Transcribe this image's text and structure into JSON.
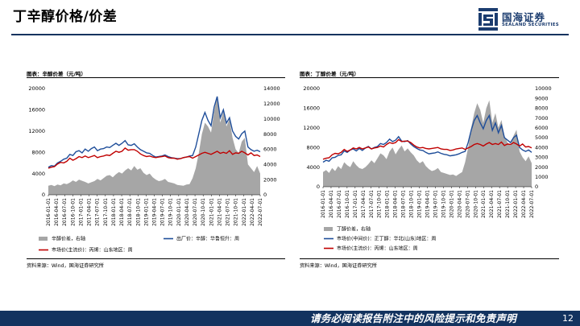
{
  "page": {
    "title": "丁辛醇价格/价差",
    "page_number": "12",
    "footer_disclaimer": "请务必阅读报告附注中的风险提示和免责声明"
  },
  "brand": {
    "name_cn": "国海证券",
    "name_en": "SEALAND SECURITIES",
    "primary_color": "#13335f"
  },
  "chart_data": [
    {
      "type": "line",
      "title": "图表：辛醇价差（元/吨）",
      "source": "资料来源：Wind，国海证券研究所",
      "x_ticks": [
        "2016-01-01",
        "2016-04-01",
        "2016-07-01",
        "2016-10-01",
        "2017-01-01",
        "2017-04-01",
        "2017-07-01",
        "2017-10-01",
        "2018-01-01",
        "2018-04-01",
        "2018-07-01",
        "2018-10-01",
        "2019-01-01",
        "2019-04-01",
        "2019-07-01",
        "2019-10-01",
        "2020-01-01",
        "2020-04-01",
        "2020-07-01",
        "2020-10-01",
        "2021-01-01",
        "2021-04-01",
        "2021-07-01",
        "2021-10-01",
        "2022-01-01",
        "2022-04-01",
        "2022-07-01"
      ],
      "ylim_left": [
        0,
        20000
      ],
      "yticks_left": [
        "0",
        "4000",
        "8000",
        "12000",
        "16000",
        "20000"
      ],
      "ylim_right": [
        0,
        14000
      ],
      "yticks_right": [
        "0",
        "2000",
        "4000",
        "6000",
        "8000",
        "10000",
        "12000",
        "14000"
      ],
      "grid": false,
      "legend_position": "bottom",
      "series": [
        {
          "name": "辛醇价差，右轴",
          "type": "area",
          "axis": "right",
          "color": "#a6a6a6",
          "values": [
            1200,
            1300,
            1150,
            1350,
            1250,
            1500,
            1400,
            1600,
            1900,
            1700,
            2000,
            1850,
            1700,
            1500,
            1650,
            1800,
            2100,
            1900,
            2200,
            2500,
            2600,
            2300,
            2700,
            3000,
            2800,
            3200,
            3500,
            3200,
            3800,
            3300,
            3500,
            2900,
            2600,
            2800,
            2300,
            2000,
            1800,
            1900,
            2100,
            1700,
            1600,
            1500,
            1300,
            1250,
            1200,
            1350,
            1400,
            2200,
            3500,
            5500,
            8000,
            9500,
            9000,
            8200,
            11000,
            13000,
            9500,
            11000,
            9000,
            10000,
            7500,
            6000,
            5500,
            7000,
            7500,
            4000,
            3500,
            3000,
            3800,
            2800
          ]
        },
        {
          "name": "出厂价：辛醇：华鲁恒升：周",
          "type": "line",
          "axis": "left",
          "color": "#1f4e9a",
          "values": [
            5200,
            5500,
            5400,
            6000,
            6300,
            6700,
            6900,
            7600,
            7400,
            8100,
            8300,
            7900,
            8600,
            8200,
            8700,
            9000,
            8300,
            8600,
            8700,
            9000,
            8900,
            9300,
            9700,
            9300,
            9700,
            10200,
            9400,
            9300,
            9600,
            9000,
            8500,
            8200,
            7900,
            7800,
            7400,
            7100,
            7200,
            7300,
            7500,
            7200,
            7000,
            6900,
            6800,
            6800,
            7000,
            7100,
            7300,
            7400,
            9000,
            11500,
            14000,
            15500,
            14000,
            13000,
            16500,
            18500,
            14500,
            16000,
            13500,
            14500,
            12000,
            11000,
            10500,
            11500,
            12000,
            9000,
            8500,
            8200,
            8400,
            8100
          ]
        },
        {
          "name": "市场价(主流价)：丙烯：山东地区：周",
          "type": "line",
          "axis": "left",
          "color": "#c00000",
          "values": [
            5000,
            5200,
            5300,
            5800,
            6100,
            6000,
            6300,
            6900,
            6500,
            6800,
            7200,
            7000,
            7300,
            7000,
            7200,
            7400,
            7000,
            7200,
            7300,
            7500,
            7400,
            7800,
            8200,
            8000,
            8200,
            8800,
            8400,
            8500,
            8500,
            8200,
            7700,
            7400,
            7200,
            7300,
            7100,
            7000,
            7100,
            7200,
            7300,
            7000,
            6900,
            6900,
            6700,
            6800,
            7000,
            7100,
            7200,
            6900,
            7200,
            7500,
            7800,
            8000,
            7800,
            7600,
            7900,
            8200,
            7800,
            8000,
            7800,
            8300,
            7600,
            7900,
            7800,
            8200,
            7900,
            7500,
            7900,
            7400,
            7500,
            7200
          ]
        }
      ]
    },
    {
      "type": "line",
      "title": "图表：丁醇价差（元/吨）",
      "source": "资料来源：Wind，国海证券研究所",
      "x_ticks": [
        "2016-01-01",
        "2016-04-01",
        "2016-07-01",
        "2016-10-01",
        "2017-01-01",
        "2017-04-01",
        "2017-07-01",
        "2017-10-01",
        "2018-01-01",
        "2018-04-01",
        "2018-07-01",
        "2018-10-01",
        "2019-01-01",
        "2019-04-01",
        "2019-07-01",
        "2019-10-01",
        "2020-01-01",
        "2020-04-01",
        "2020-07-01",
        "2020-10-01",
        "2021-01-01",
        "2021-04-01",
        "2021-07-01",
        "2021-10-01",
        "2022-01-01",
        "2022-04-01",
        "2022-07-01"
      ],
      "ylim_left": [
        0,
        20000
      ],
      "yticks_left": [
        "0",
        "4000",
        "8000",
        "12000",
        "16000",
        "20000"
      ],
      "ylim_right": [
        0,
        10000
      ],
      "yticks_right": [
        "0",
        "1000",
        "2000",
        "3000",
        "4000",
        "5000",
        "6000",
        "7000",
        "8000",
        "9000",
        "10000"
      ],
      "grid": false,
      "legend_position": "bottom",
      "series": [
        {
          "name": "丁醇价差，右轴",
          "type": "area",
          "axis": "right",
          "color": "#a6a6a6",
          "values": [
            1500,
            1700,
            1400,
            1900,
            1600,
            2100,
            1800,
            2500,
            2200,
            2000,
            2600,
            2200,
            1900,
            1800,
            2000,
            2300,
            2700,
            2400,
            2900,
            3400,
            3200,
            2800,
            3600,
            4000,
            3300,
            3800,
            4200,
            3600,
            3900,
            3500,
            3200,
            2700,
            2400,
            2600,
            2100,
            1800,
            1600,
            1700,
            1900,
            1500,
            1400,
            1300,
            1200,
            1250,
            1100,
            1300,
            1500,
            2500,
            4000,
            6000,
            7500,
            8500,
            7800,
            6500,
            8000,
            8800,
            6500,
            7500,
            6000,
            6800,
            5200,
            4500,
            4200,
            5200,
            5800,
            3600,
            3000,
            2600,
            3100,
            2400
          ]
        },
        {
          "name": "市场价(中间价)：正丁醇：华北(山东)地区：周",
          "type": "line",
          "axis": "left",
          "color": "#1f4e9a",
          "values": [
            5000,
            5400,
            5200,
            5900,
            6000,
            6400,
            6500,
            7300,
            7000,
            7500,
            7700,
            7300,
            7800,
            7400,
            7900,
            8200,
            7700,
            8000,
            8200,
            8800,
            8600,
            9000,
            9700,
            9200,
            9500,
            10200,
            9300,
            9200,
            9400,
            8700,
            8200,
            7800,
            7500,
            7400,
            7000,
            6700,
            6800,
            6900,
            7100,
            6800,
            6600,
            6500,
            6300,
            6400,
            6500,
            6700,
            7000,
            7200,
            9000,
            11500,
            13500,
            14500,
            13000,
            11800,
            13500,
            14500,
            11500,
            13000,
            11000,
            12500,
            10000,
            9500,
            9000,
            10000,
            10500,
            8000,
            7500,
            7200,
            7500,
            7000
          ]
        },
        {
          "name": "市场价(主流价)：丙烯：山东地区：周",
          "type": "line",
          "axis": "left",
          "color": "#c00000",
          "values": [
            5600,
            5800,
            5900,
            6500,
            6800,
            6700,
            7000,
            7600,
            7200,
            7500,
            7900,
            7700,
            8000,
            7700,
            7900,
            8100,
            7700,
            7900,
            8000,
            8300,
            8100,
            8600,
            9000,
            8800,
            9000,
            9600,
            9200,
            9300,
            9300,
            9000,
            8500,
            8100,
            7900,
            8000,
            7800,
            7700,
            7800,
            7900,
            8000,
            7700,
            7600,
            7600,
            7400,
            7500,
            7700,
            7800,
            7900,
            7600,
            7900,
            8200,
            8600,
            8800,
            8600,
            8300,
            8700,
            9000,
            8600,
            8800,
            8600,
            9100,
            8400,
            8700,
            8600,
            9000,
            8700,
            8300,
            8700,
            8100,
            8200,
            7900
          ]
        }
      ]
    }
  ]
}
